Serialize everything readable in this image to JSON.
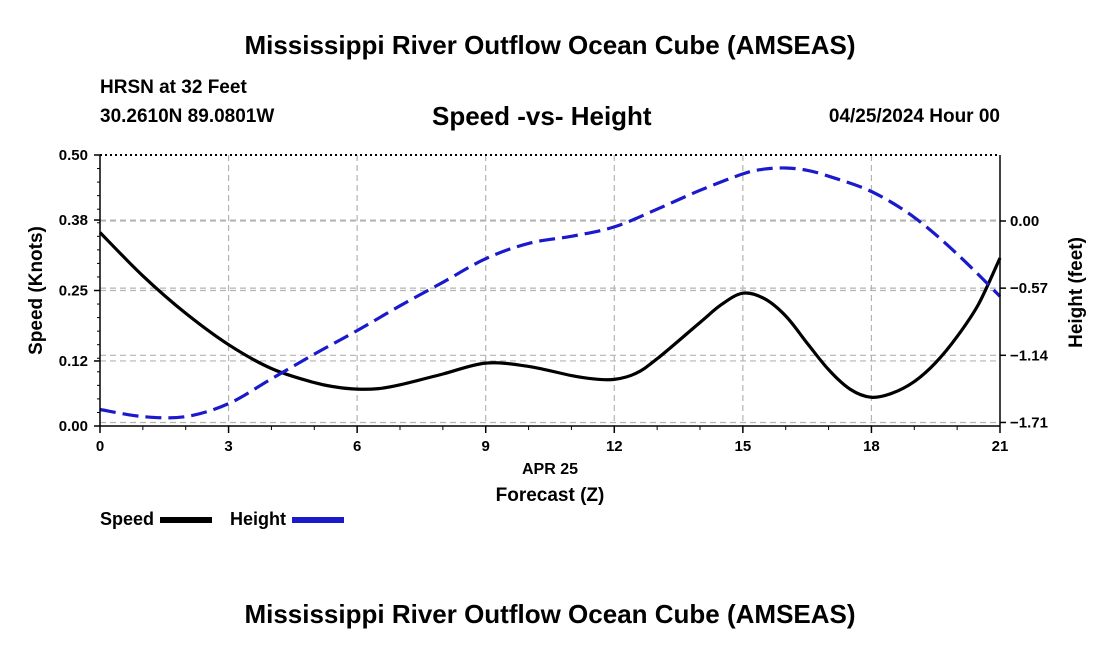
{
  "page": {
    "title": "Mississippi River Outflow Ocean Cube (AMSEAS)",
    "footer_title": "Mississippi River Outflow Ocean Cube (AMSEAS)",
    "station_name": "HRSN at 32 Feet",
    "station_coords": "30.2610N  89.0801W",
    "chart_heading": "Speed -vs- Height",
    "timestamp": "04/25/2024 Hour 00"
  },
  "colors": {
    "speed": "#000000",
    "height": "#1a1acc",
    "grid": "#b4b4b4"
  },
  "chart_data": {
    "type": "line",
    "title": "Speed -vs- Height",
    "xlabel_date": "APR 25",
    "xlabel": "Forecast (Z)",
    "ylabel_left": "Speed (Knots)",
    "ylabel_right": "Height (feet)",
    "xlim": [
      0,
      21
    ],
    "ylim_left": [
      0,
      0.5
    ],
    "ylim_right": [
      -1.74,
      0.56
    ],
    "x_ticks": [
      0,
      3,
      6,
      9,
      12,
      15,
      18,
      21
    ],
    "x_tick_labels": [
      "0",
      "3",
      "6",
      "9",
      "12",
      "15",
      "18",
      "21"
    ],
    "y_left_ticks": [
      0.0,
      0.12,
      0.25,
      0.38,
      0.5
    ],
    "y_left_tick_labels": [
      "0.00",
      "0.12",
      "0.25",
      "0.38",
      "0.50"
    ],
    "y_right_ticks": [
      0.0,
      -0.57,
      -1.14,
      -1.71
    ],
    "y_right_tick_labels": [
      "0.00",
      "−0.57",
      "−1.14",
      "−1.71"
    ],
    "grid": true,
    "legend_position": "bottom-left",
    "series": [
      {
        "name": "Speed",
        "axis": "left",
        "style": "solid",
        "x": [
          0,
          1,
          2,
          3,
          4,
          5,
          5.5,
          6,
          6.5,
          7,
          8,
          9,
          10,
          11,
          11.5,
          12,
          12.5,
          13,
          14,
          14.5,
          15,
          15.5,
          16,
          16.5,
          17,
          17.5,
          18,
          18.5,
          19,
          19.5,
          20,
          20.5,
          21
        ],
        "values": [
          0.357,
          0.277,
          0.208,
          0.15,
          0.106,
          0.08,
          0.072,
          0.068,
          0.069,
          0.076,
          0.096,
          0.116,
          0.11,
          0.093,
          0.087,
          0.086,
          0.097,
          0.124,
          0.191,
          0.224,
          0.245,
          0.235,
          0.203,
          0.153,
          0.104,
          0.068,
          0.053,
          0.061,
          0.082,
          0.117,
          0.165,
          0.225,
          0.31
        ]
      },
      {
        "name": "Height",
        "axis": "right",
        "style": "dashed",
        "x": [
          0,
          1,
          2,
          3,
          4,
          5,
          6,
          7,
          8,
          9,
          10,
          11,
          12,
          13,
          14,
          15,
          15.5,
          16,
          16.5,
          17,
          18,
          19,
          20,
          21
        ],
        "values": [
          -1.6,
          -1.66,
          -1.66,
          -1.55,
          -1.34,
          -1.13,
          -0.93,
          -0.72,
          -0.52,
          -0.32,
          -0.19,
          -0.13,
          -0.05,
          0.1,
          0.26,
          0.4,
          0.44,
          0.45,
          0.43,
          0.38,
          0.25,
          0.03,
          -0.28,
          -0.64
        ]
      }
    ]
  }
}
